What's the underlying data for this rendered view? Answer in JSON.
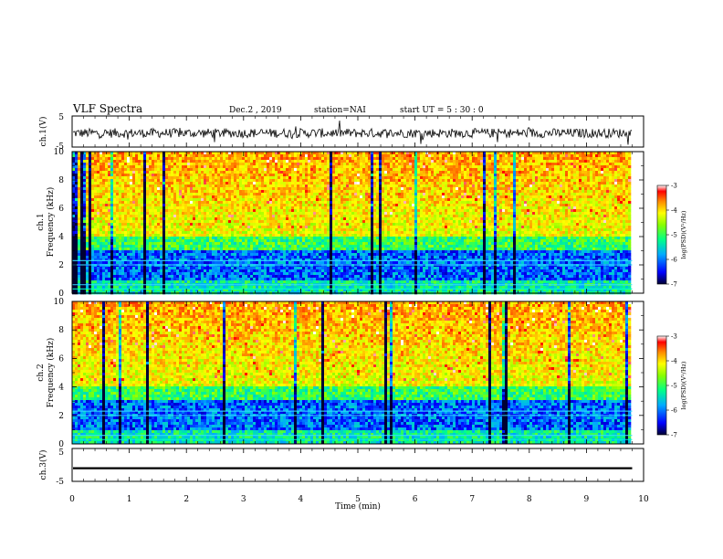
{
  "header": {
    "title": "VLF Spectra",
    "date": "Dec.2  , 2019",
    "station": "station=NAI",
    "start": "start  UT  =   5  : 30 : 0"
  },
  "chart_data": [
    {
      "type": "line",
      "ylabel": "ch.1(V)",
      "ylim": [
        -5,
        5
      ],
      "yticks": [
        "5",
        "-5"
      ],
      "description_values": {
        "baseline": -0.5,
        "noise_amplitude": 1.5
      }
    },
    {
      "type": "heatmap",
      "ylabel": "ch.1\nFrequency (kHz)",
      "ylabel_top": "ch.1",
      "ylabel_bottom": "Frequency  (kHz)",
      "ylim": [
        0,
        10
      ],
      "yticks": [
        "0",
        "2",
        "4",
        "6",
        "8",
        "10"
      ],
      "colorbar": {
        "label": "log(PSD)(V²/Hz)",
        "range": [
          -7,
          -3
        ],
        "ticks": [
          "-3",
          "-4",
          "-5",
          "-6",
          "-7"
        ],
        "colors": [
          "#000033",
          "#0000ff",
          "#00aaff",
          "#00ff88",
          "#88ff00",
          "#ffff00",
          "#ff8800",
          "#ff0000",
          "#ffffff"
        ]
      }
    },
    {
      "type": "heatmap",
      "ylabel": "ch.2\nFrequency (kHz)",
      "ylabel_top": "ch.2",
      "ylabel_bottom": "Frequency  (kHz)",
      "ylim": [
        0,
        10
      ],
      "yticks": [
        "0",
        "2",
        "4",
        "6",
        "8",
        "10"
      ],
      "colorbar": {
        "label": "log(PSD)(V²/Hz)",
        "range": [
          -7,
          -3
        ],
        "ticks": [
          "-3",
          "-4",
          "-5",
          "-6",
          "-7"
        ],
        "colors": [
          "#000033",
          "#0000ff",
          "#00aaff",
          "#00ff88",
          "#88ff00",
          "#ffff00",
          "#ff8800",
          "#ff0000",
          "#ffffff"
        ]
      }
    },
    {
      "type": "line",
      "ylabel": "ch.3(V)",
      "ylim": [
        -5,
        5
      ],
      "yticks": [
        "5",
        "-5"
      ],
      "description_values": {
        "baseline": -1
      }
    }
  ],
  "xaxis": {
    "label": "Time  (min)",
    "range": [
      0,
      10
    ],
    "ticks": [
      "0",
      "1",
      "2",
      "3",
      "4",
      "5",
      "6",
      "7",
      "8",
      "9",
      "10"
    ],
    "data_end": 9.8
  }
}
